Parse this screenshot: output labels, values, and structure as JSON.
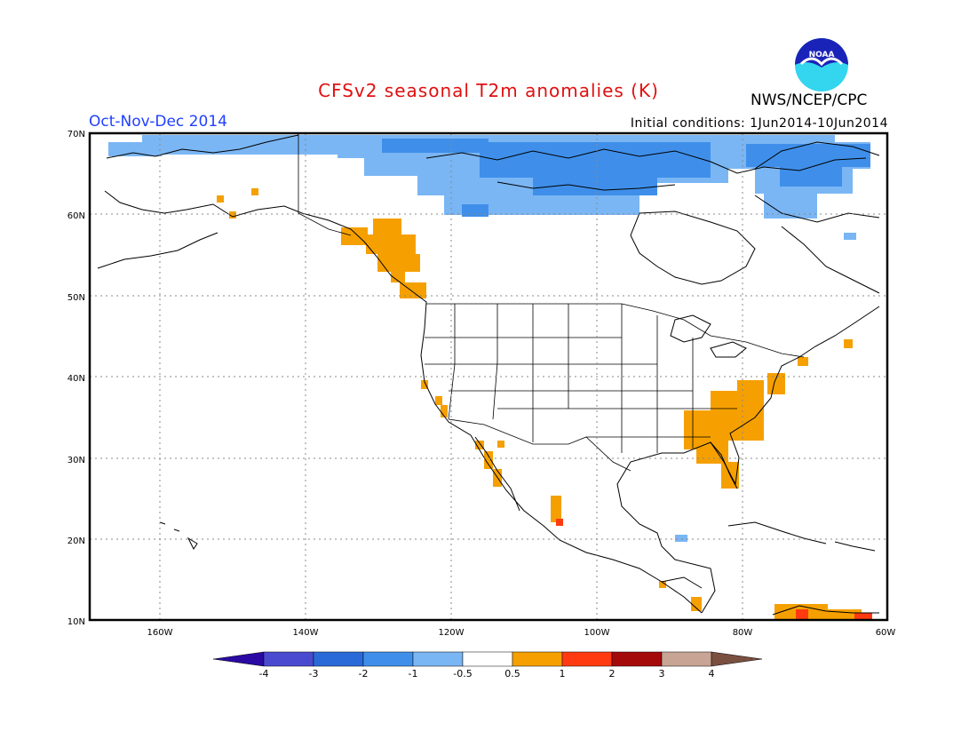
{
  "header": {
    "title": "CFSv2 seasonal T2m anomalies (K)",
    "agency": "NWS/NCEP/CPC",
    "logo_text": "NOAA",
    "period": "Oct-Nov-Dec 2014",
    "initial_conditions": "Initial conditions: 1Jun2014-10Jun2014"
  },
  "map": {
    "lon_labels": [
      "160W",
      "140W",
      "120W",
      "100W",
      "80W",
      "60W"
    ],
    "lat_labels": [
      "70N",
      "60N",
      "50N",
      "40N",
      "30N",
      "20N",
      "10N"
    ],
    "grid": true
  },
  "colorbar": {
    "labels": [
      "-4",
      "-3",
      "-2",
      "-1",
      "-0.5",
      "0.5",
      "1",
      "2",
      "3",
      "4"
    ],
    "colors": [
      "#2b0aa3",
      "#4a4ad0",
      "#2a6ad8",
      "#3f8fea",
      "#7ab6f4",
      "#ffffff",
      "#f5a000",
      "#ff3a10",
      "#a50a0a",
      "#c8a494",
      "#7a5040"
    ]
  },
  "colors": {
    "cold_light": "#7ab6f4",
    "cold_mid": "#3f8fea",
    "warm": "#f5a000",
    "hot": "#ff3a10",
    "very_hot": "#a50a0a"
  }
}
